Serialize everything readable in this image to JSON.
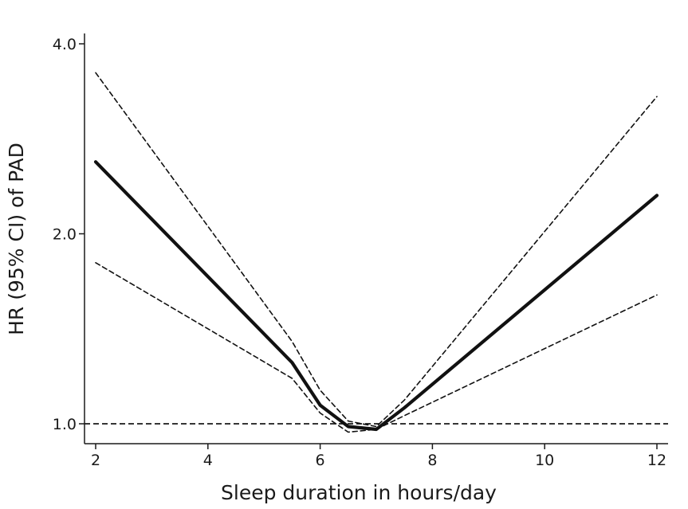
{
  "chart_data": {
    "type": "line",
    "title": "",
    "xlabel": "Sleep duration in hours/day",
    "ylabel": "HR (95% CI) of PAD",
    "y_scale": "log",
    "xlim": [
      2,
      12
    ],
    "ylim": [
      0.93,
      4.2
    ],
    "xticks": [
      2,
      4,
      6,
      8,
      10,
      12
    ],
    "xtick_labels": [
      "2",
      "4",
      "6",
      "8",
      "10",
      "12"
    ],
    "yticks": [
      1.0,
      2.0,
      4.0
    ],
    "ytick_labels": [
      "1.0",
      "2.0",
      "4.0"
    ],
    "reference_line": {
      "y": 1.0,
      "style": "dashed"
    },
    "series": [
      {
        "name": "HR",
        "style": "solid-thick",
        "x": [
          2,
          5.5,
          6,
          6.5,
          7,
          7.5,
          12
        ],
        "y": [
          2.6,
          1.25,
          1.07,
          0.99,
          0.98,
          1.06,
          2.3
        ]
      },
      {
        "name": "95% CI upper",
        "style": "dashed",
        "x": [
          2,
          5.5,
          6,
          6.5,
          7,
          7.5,
          12
        ],
        "y": [
          3.6,
          1.35,
          1.13,
          1.01,
          0.99,
          1.09,
          3.3
        ]
      },
      {
        "name": "95% CI lower",
        "style": "dashed",
        "x": [
          2,
          5.5,
          6,
          6.5,
          7,
          7.5,
          12
        ],
        "y": [
          1.8,
          1.18,
          1.04,
          0.97,
          0.98,
          1.03,
          1.6
        ]
      }
    ]
  }
}
